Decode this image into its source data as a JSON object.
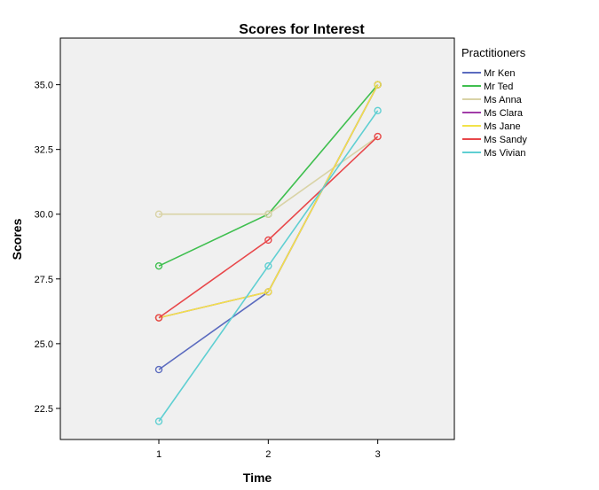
{
  "chart_data": {
    "type": "line",
    "title": "Scores for Interest",
    "xlabel": "Time",
    "ylabel": "Scores",
    "x": [
      1,
      2,
      3
    ],
    "x_tick_labels": [
      "1",
      "2",
      "3"
    ],
    "xlim": [
      0.1,
      3.7
    ],
    "ylim": [
      21.3,
      36.8
    ],
    "y_ticks": [
      22.5,
      25.0,
      27.5,
      30.0,
      32.5,
      35.0
    ],
    "y_tick_labels": [
      "22.5",
      "25.0",
      "27.5",
      "30.0",
      "32.5",
      "35.0"
    ],
    "plot_background": "#f0f0f0",
    "grid": false,
    "legend_title": "Practitioners",
    "legend_position": "right",
    "series": [
      {
        "name": "Mr Ken",
        "color": "#5b6bbf",
        "values": [
          24,
          27,
          35
        ]
      },
      {
        "name": "Mr Ted",
        "color": "#3fbf4f",
        "values": [
          28,
          30,
          35
        ]
      },
      {
        "name": "Ms Anna",
        "color": "#d9d3a6",
        "values": [
          30,
          30,
          33
        ]
      },
      {
        "name": "Ms Clara",
        "color": "#a23ca8",
        "values": [
          26,
          27,
          35
        ]
      },
      {
        "name": "Ms Jane",
        "color": "#f2e34a",
        "values": [
          26,
          27,
          35
        ]
      },
      {
        "name": "Ms Sandy",
        "color": "#e8474a",
        "values": [
          26,
          29,
          33
        ]
      },
      {
        "name": "Ms Vivian",
        "color": "#5fcfd2",
        "values": [
          22,
          28,
          34
        ]
      }
    ]
  }
}
